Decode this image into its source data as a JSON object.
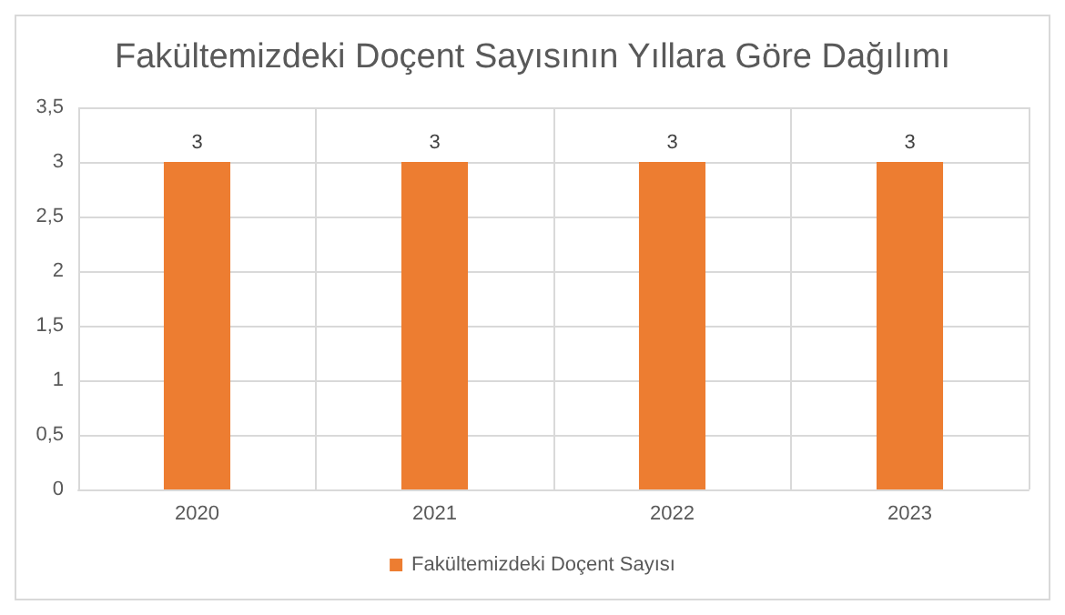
{
  "chart_data": {
    "type": "bar",
    "title": "Fakültemizdeki Doçent Sayısının Yıllara Göre Dağılımı",
    "categories": [
      "2020",
      "2021",
      "2022",
      "2023"
    ],
    "series": [
      {
        "name": "Fakültemizdeki Doçent Sayısı",
        "color": "#ed7d31",
        "values": [
          3,
          3,
          3,
          3
        ]
      }
    ],
    "ylim": [
      0,
      3.5
    ],
    "yticks": [
      0,
      {
        "value": 0.5,
        "label": "0,5"
      },
      1,
      {
        "value": 1.5,
        "label": "1,5"
      },
      2,
      {
        "value": 2.5,
        "label": "2,5"
      },
      3,
      {
        "value": 3.5,
        "label": "3,5"
      }
    ],
    "grid": true,
    "legend": "bottom",
    "data_labels": true
  }
}
